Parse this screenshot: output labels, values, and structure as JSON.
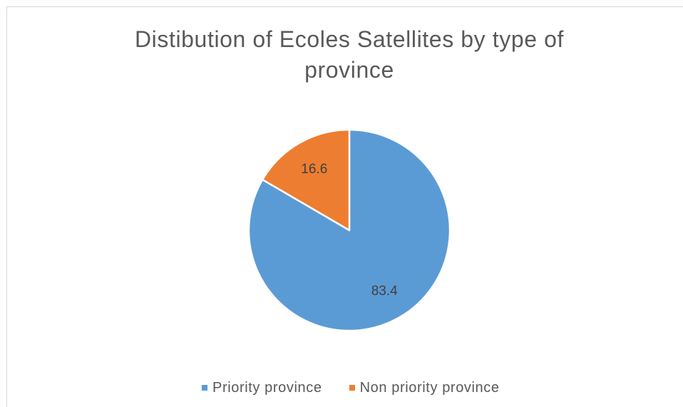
{
  "chart_data": {
    "type": "pie",
    "title": "Distibution of Ecoles Satellites by type of province",
    "categories": [
      "Priority province",
      "Non priority province"
    ],
    "values": [
      83.4,
      16.6
    ],
    "colors": [
      "#5B9BD5",
      "#ED7D31"
    ],
    "legend_position": "bottom",
    "data_labels_shown": true
  }
}
